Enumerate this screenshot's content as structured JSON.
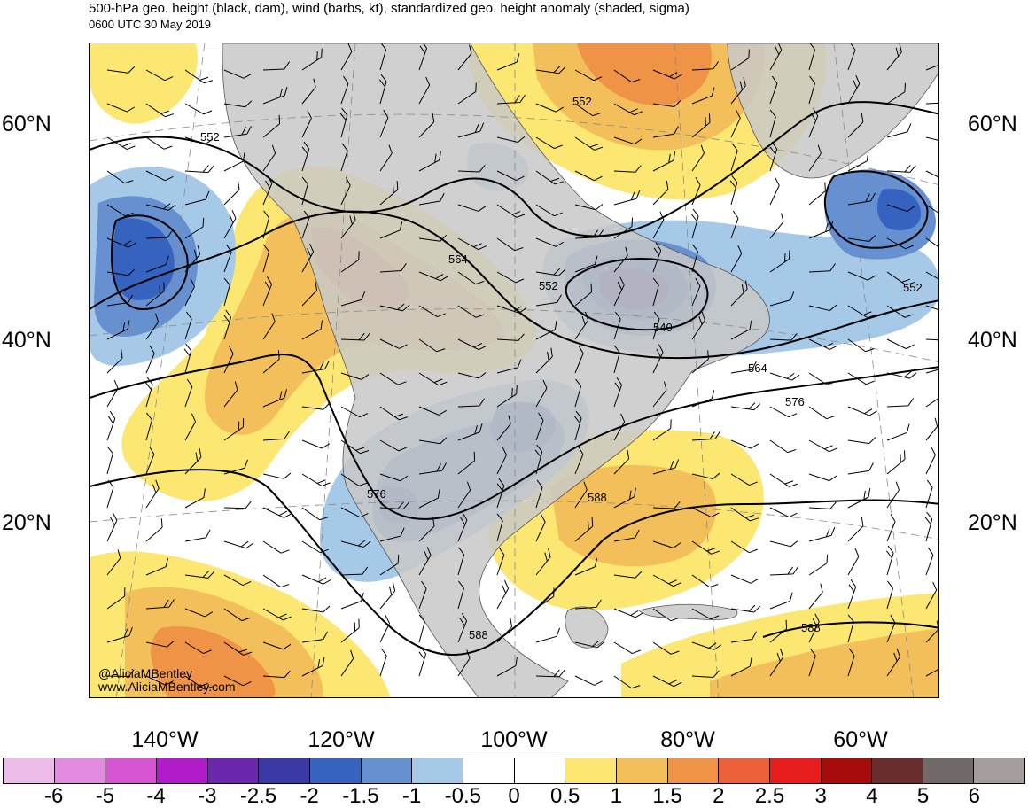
{
  "header": {
    "title": "500-hPa geo. height (black, dam), wind (barbs, kt), standardized geo. height anomaly (shaded, sigma)",
    "valid_time": "0600 UTC 30 May 2019"
  },
  "map": {
    "projection": "polar-stereographic / Lambert (North America)",
    "lat_labels": [
      "60°N",
      "40°N",
      "20°N"
    ],
    "lon_labels": [
      "140°W",
      "120°W",
      "100°W",
      "80°W",
      "60°W"
    ],
    "contour_labels": [
      "552",
      "552",
      "564",
      "552",
      "540",
      "552",
      "564",
      "576",
      "576",
      "588",
      "588",
      "588"
    ],
    "features": {
      "negative_anomalies": [
        "Gulf of Alaska low",
        "Great Lakes / Hudson Bay low",
        "Northwest Atlantic low",
        "Central US trough",
        "Baja California low"
      ],
      "positive_anomalies": [
        "Western Canada ridge",
        "Greenland ridge",
        "Southeast US / Gulf of Mexico ridge",
        "Eastern Pacific subtropics",
        "Caribbean"
      ]
    }
  },
  "credits": {
    "handle": "@AliciaMBentley",
    "website": "www.AliciaMBentley.com"
  },
  "colorbar": {
    "labels": [
      "-6",
      "-5",
      "-4",
      "-3",
      "-2.5",
      "-2",
      "-1.5",
      "-1",
      "-0.5",
      "0",
      "0.5",
      "1",
      "1.5",
      "2",
      "2.5",
      "3",
      "4",
      "5",
      "6"
    ],
    "colors": [
      "#ebbde8",
      "#e38be0",
      "#d654d2",
      "#b11bc9",
      "#6b27ad",
      "#3b3aa4",
      "#3563bf",
      "#6690d0",
      "#a6c9e8",
      "#ffffff",
      "#ffffff",
      "#fbe771",
      "#f3bf5a",
      "#ef9346",
      "#ec613a",
      "#e71d1d",
      "#a70b0b",
      "#6b2e2e",
      "#726969",
      "#a59c9c"
    ]
  },
  "colors": {
    "land": "#c8c8c8",
    "ocean": "#ffffff",
    "contour": "#000000"
  }
}
